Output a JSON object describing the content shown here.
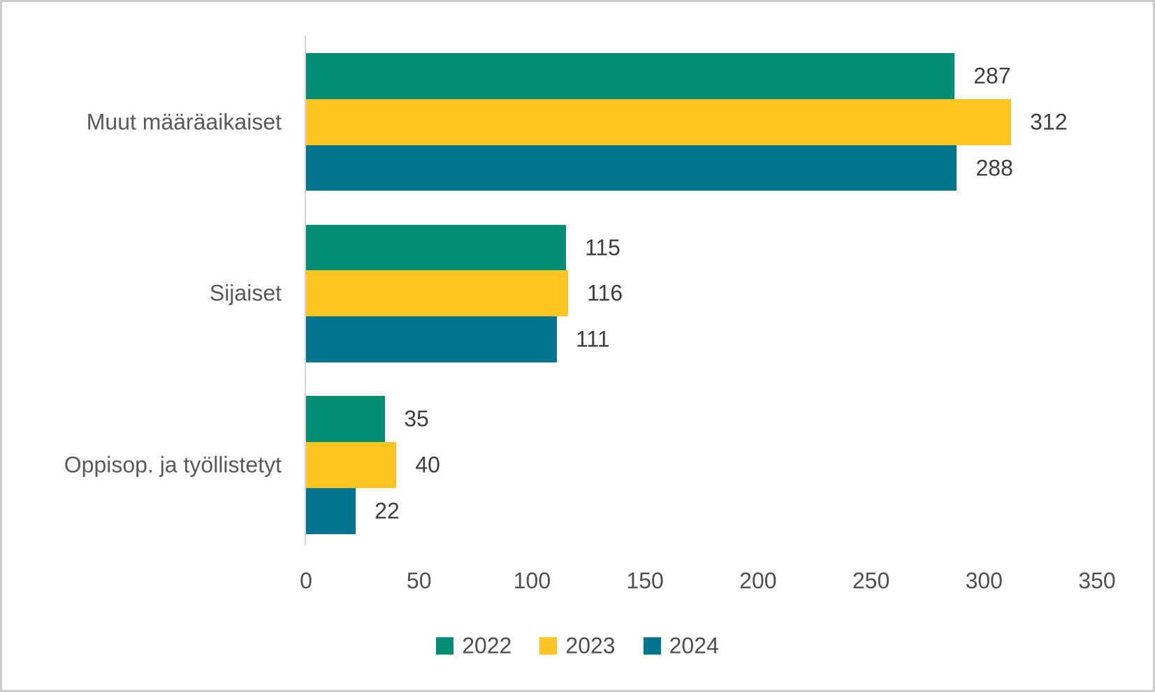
{
  "chart_data": {
    "type": "bar",
    "orientation": "horizontal",
    "title": "",
    "categories": [
      "Muut määräaikaiset",
      "Sijaiset",
      "Oppisop. ja työllistetyt"
    ],
    "series": [
      {
        "name": "2022",
        "color": "#028D74",
        "values": [
          287,
          115,
          35
        ]
      },
      {
        "name": "2023",
        "color": "#FDC521",
        "values": [
          312,
          116,
          40
        ]
      },
      {
        "name": "2024",
        "color": "#02758E",
        "values": [
          288,
          111,
          22
        ]
      }
    ],
    "data_labels": [
      [
        "287",
        "115",
        "35"
      ],
      [
        "312",
        "116",
        "40"
      ],
      [
        "288",
        "111",
        "22"
      ]
    ],
    "x_ticks": [
      "0",
      "50",
      "100",
      "150",
      "200",
      "250",
      "300",
      "350"
    ],
    "xlim": [
      0,
      350
    ],
    "grid": false,
    "legend_position": "bottom"
  },
  "colors": {
    "background": "#FFFFFF",
    "border": "#CCCCCC",
    "axis_line": "#D5D5D5",
    "category_text": "#595959",
    "tick_text": "#4F4F4F",
    "data_label_text": "#3E3E3E",
    "series_2022": "#028D74",
    "series_2023": "#FDC521",
    "series_2024": "#02758E"
  }
}
